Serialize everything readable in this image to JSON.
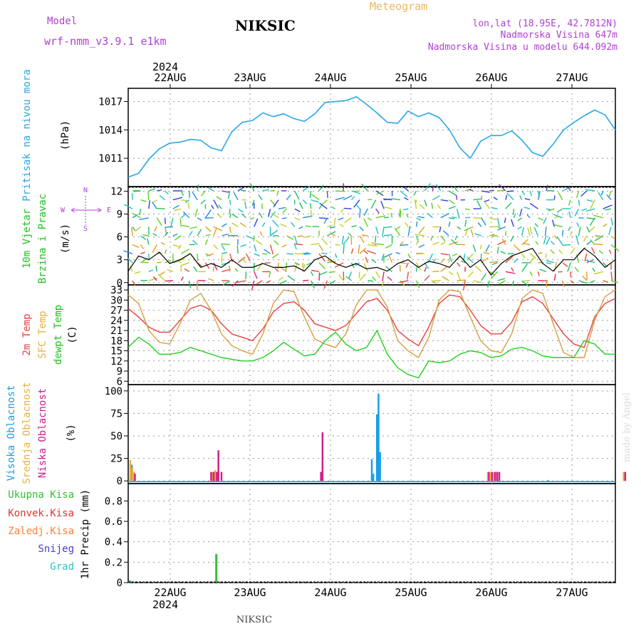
{
  "header": {
    "model_label": "Model",
    "model_version": "wrf-nmm_v3.9.1 e1km",
    "location": "NIKSIC",
    "title": "Meteogram",
    "coords": "lon,lat (18.95E, 42.7812N)",
    "altitude": "Nadmorska Visina 647m",
    "model_altitude": "Nadmorska Visina u modelu 644.092m"
  },
  "top_axis": {
    "year": "2024",
    "days": [
      "22AUG",
      "23AUG",
      "24AUG",
      "25AUG",
      "26AUG",
      "27AUG"
    ]
  },
  "bottom_axis": {
    "year": "2024",
    "days": [
      "22AUG",
      "23AUG",
      "24AUG",
      "25AUG",
      "26AUG",
      "27AUG"
    ]
  },
  "footer": {
    "station": "NIKSIC",
    "watermark": "made by Angel"
  },
  "panels": {
    "pressure": {
      "label": "Pritisak na nivou mora",
      "unit": "(hPa)"
    },
    "wind": {
      "label1": "10m Vjetar",
      "label2": "Brzina i Pravac",
      "unit": "(m/s)",
      "compass": {
        "n": "N",
        "s": "S",
        "e": "E",
        "w": "W"
      }
    },
    "temp": {
      "label1": "2m Temp",
      "label2": "SFC Temp",
      "label3": "dewpt Temp",
      "unit": "(C)"
    },
    "cloud": {
      "label1": "Visoka Oblacnost",
      "label2": "Srednja Oblacnost",
      "label3": "Niska Oblacnost",
      "unit": "(%)"
    },
    "precip": {
      "unit": "1hr Precip (mm)",
      "legend": [
        "Ukupna Kisa",
        "Konvek.Kisa",
        "Zaledj.Kisa",
        "Snijeg",
        "Grad"
      ]
    }
  },
  "colors": {
    "pressure": "#2aa7e6",
    "temp2m": "#e84040",
    "sfc": "#d4a040",
    "dewpt": "#20d020",
    "high_cloud": "#1a9ee8",
    "mid_cloud": "#e8b040",
    "low_cloud": "#d0208a",
    "precip_total": "#30c030",
    "convective": "#e83030",
    "freezing": "#ff8030",
    "snow": "#4040e0",
    "hail": "#30c0c0",
    "header_purple": "#b040d0",
    "title_orange": "#e8b860",
    "axis_label_cyan": "#2aa7e6"
  },
  "chart_data": [
    {
      "type": "line",
      "name": "pressure",
      "x_start": "2024-08-21T15:00",
      "x_step_hours": 3,
      "ylabel": "(hPa)",
      "yticks": [
        1011,
        1014,
        1017
      ],
      "ylim": [
        1008.0,
        1018.4
      ],
      "series": [
        {
          "values": [
            1009.0,
            1009.4,
            1010.9,
            1012.0,
            1012.6,
            1012.7,
            1013.0,
            1012.9,
            1012.1,
            1011.8,
            1013.8,
            1014.8,
            1015.0,
            1015.8,
            1015.4,
            1015.7,
            1015.2,
            1014.9,
            1015.7,
            1016.9,
            1017.0,
            1017.1,
            1017.5,
            1016.7,
            1015.8,
            1014.8,
            1014.7,
            1016.0,
            1015.4,
            1015.8,
            1015.3,
            1014.0,
            1012.1,
            1011.0,
            1012.8,
            1013.4,
            1013.4,
            1013.9,
            1012.9,
            1011.6,
            1011.2,
            1012.5,
            1014.0,
            1014.8,
            1015.5,
            1016.1,
            1015.6,
            1014.0
          ]
        }
      ]
    },
    {
      "type": "line",
      "name": "wind",
      "x_start": "2024-08-21T15:00",
      "x_step_hours": 3,
      "ylabel": "(m/s)",
      "yticks": [
        0,
        3,
        6,
        9,
        12
      ],
      "ylim": [
        -0.3,
        12.6
      ],
      "series": [
        {
          "name": "speed",
          "values": [
            1.5,
            3.5,
            3.0,
            4.0,
            2.5,
            3.0,
            3.8,
            2.0,
            2.5,
            2.0,
            3.0,
            2.0,
            2.0,
            2.5,
            2.0,
            2.0,
            2.2,
            1.5,
            3.0,
            3.5,
            2.5,
            2.0,
            2.5,
            1.8,
            2.0,
            1.5,
            2.5,
            3.0,
            2.0,
            2.8,
            2.5,
            2.0,
            3.5,
            2.0,
            3.0,
            1.0,
            2.5,
            3.5,
            4.0,
            4.5,
            2.5,
            1.5,
            3.0,
            3.0,
            4.5,
            3.5,
            2.0,
            3.0
          ]
        }
      ]
    },
    {
      "type": "line",
      "name": "temperature",
      "x_start": "2024-08-21T15:00",
      "x_step_hours": 3,
      "ylabel": "(C)",
      "yticks": [
        6,
        9,
        12,
        15,
        18,
        21,
        24,
        27,
        30,
        33
      ],
      "ylim": [
        5.0,
        34.5
      ],
      "series": [
        {
          "name": "2m Temp",
          "values": [
            27.5,
            25.0,
            22.0,
            20.5,
            20.5,
            24.0,
            27.5,
            28.5,
            27.0,
            23.0,
            20.0,
            19.0,
            18.0,
            21.5,
            26.5,
            29.0,
            29.5,
            27.0,
            23.0,
            22.0,
            21.0,
            22.5,
            26.0,
            29.5,
            30.5,
            27.0,
            21.0,
            18.5,
            16.5,
            22.0,
            29.0,
            31.5,
            31.0,
            27.0,
            22.5,
            20.0,
            20.0,
            23.5,
            29.5,
            31.0,
            29.0,
            24.5,
            20.0,
            17.0,
            16.0,
            25.0,
            29.0,
            30.5
          ]
        },
        {
          "name": "SFC Temp",
          "values": [
            31.5,
            29.0,
            21.0,
            17.5,
            17.0,
            23.0,
            30.0,
            32.0,
            27.0,
            20.0,
            16.5,
            15.0,
            14.0,
            20.0,
            29.0,
            33.0,
            32.5,
            25.0,
            18.5,
            17.0,
            16.0,
            20.0,
            28.5,
            33.0,
            33.0,
            28.0,
            18.0,
            15.0,
            13.0,
            19.0,
            30.0,
            33.0,
            32.5,
            25.0,
            18.0,
            15.0,
            14.5,
            20.0,
            30.5,
            33.0,
            32.0,
            23.0,
            14.5,
            13.0,
            13.0,
            24.0,
            31.0,
            33.0
          ]
        },
        {
          "name": "dewpt Temp",
          "values": [
            16.0,
            19.0,
            17.0,
            14.0,
            14.0,
            14.5,
            16.0,
            15.0,
            14.0,
            13.0,
            12.5,
            12.0,
            12.0,
            13.0,
            15.0,
            17.5,
            15.5,
            13.5,
            14.0,
            18.0,
            20.5,
            17.0,
            15.0,
            16.0,
            21.0,
            14.0,
            10.0,
            8.0,
            7.0,
            12.0,
            11.5,
            12.0,
            14.0,
            15.0,
            14.5,
            13.0,
            13.5,
            15.5,
            16.0,
            15.0,
            13.5,
            13.0,
            13.0,
            13.0,
            18.0,
            17.0,
            14.0,
            14.0
          ]
        }
      ]
    },
    {
      "type": "bar",
      "name": "cloud cover",
      "x_start": "2024-08-21T15:00",
      "x_step_hours": 3,
      "ylabel": "(%)",
      "yticks": [
        0,
        25,
        50,
        75,
        100
      ],
      "ylim": [
        -3,
        107
      ],
      "series": [
        {
          "name": "Visoka Oblacnost",
          "points": [
            [
              0.35,
              18
            ],
            [
              8.3,
              1
            ],
            [
              8.45,
              2
            ],
            [
              8.6,
              3
            ],
            [
              23.5,
              24
            ],
            [
              23.65,
              8
            ],
            [
              24.0,
              74
            ],
            [
              24.15,
              97
            ],
            [
              24.3,
              32
            ],
            [
              40.5,
              1
            ]
          ]
        },
        {
          "name": "Srednja Oblacnost",
          "points": [
            [
              0.2,
              23
            ],
            [
              0.4,
              15
            ],
            [
              0.55,
              10
            ],
            [
              8.1,
              10
            ],
            [
              8.4,
              12
            ],
            [
              8.5,
              10
            ],
            [
              34.7,
              10
            ],
            [
              35.0,
              10
            ],
            [
              35.3,
              10
            ],
            [
              47.8,
              10
            ]
          ]
        },
        {
          "name": "Niska Oblacnost",
          "points": [
            [
              0.65,
              8
            ],
            [
              8.0,
              10
            ],
            [
              8.25,
              10
            ],
            [
              8.55,
              10
            ],
            [
              8.7,
              34
            ],
            [
              9.0,
              10
            ],
            [
              18.6,
              10
            ],
            [
              18.75,
              54
            ],
            [
              34.8,
              10
            ],
            [
              35.1,
              10
            ],
            [
              35.4,
              10
            ],
            [
              35.6,
              10
            ],
            [
              35.8,
              10
            ],
            [
              47.95,
              10
            ]
          ]
        }
      ]
    },
    {
      "type": "bar",
      "name": "precipitation",
      "x_start": "2024-08-21T15:00",
      "x_step_hours": 3,
      "ylabel": "1hr Precip (mm)",
      "yticks": [
        0,
        0.2,
        0.4,
        0.6,
        0.8
      ],
      "ylim": [
        0.0,
        0.97
      ],
      "series": [
        {
          "name": "Ukupna Kisa",
          "points": [
            [
              0.2,
              0.02
            ],
            [
              8.5,
              0.28
            ]
          ]
        }
      ]
    }
  ]
}
